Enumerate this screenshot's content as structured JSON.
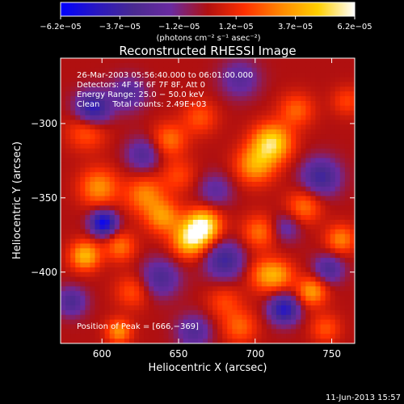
{
  "chart_data": {
    "type": "heatmap",
    "title": "Reconstructed RHESSI Image",
    "xlabel": "Heliocentric X (arcsec)",
    "ylabel": "Heliocentric Y (arcsec)",
    "xlim": [
      573,
      765
    ],
    "ylim": [
      -448,
      -256
    ],
    "x_ticks": [
      600,
      650,
      700,
      750
    ],
    "y_ticks": [
      -300,
      -350,
      -400
    ],
    "x_tick_labels": [
      "600",
      "650",
      "700",
      "750"
    ],
    "y_tick_labels": [
      "−300",
      "−350",
      "−400"
    ],
    "colorbar": {
      "range": [
        -6.2e-05,
        6.2e-05
      ],
      "ticks": [
        -6.2e-05,
        -3.7e-05,
        -1.2e-05,
        1.2e-05,
        3.7e-05,
        6.2e-05
      ],
      "tick_labels": [
        "−6.2e−05",
        "−3.7e−05",
        "−1.2e−05",
        "1.2e−05",
        "3.7e−05",
        "6.2e−05"
      ],
      "unit_label": "(photons cm⁻² s⁻¹ asec⁻²)",
      "colors": [
        "#0000ff",
        "#2a18c0",
        "#4a2a90",
        "#6a2aa0",
        "#b01010",
        "#ff3000",
        "#ff8800",
        "#ffd000",
        "#ffffff"
      ]
    },
    "annotations": {
      "time_range": "26‑Mar‑2003 05:56:40.000 to 06:01:00.000",
      "detectors": "Detectors: 4F 5F 6F 7F 8F, Att 0",
      "energy": "Energy Range: 25.0 − 50.0 keV",
      "clean": "Clean     Total counts: 2.49E+03",
      "peak": "Position of Peak = [666,−369]"
    },
    "peak_position": [
      666,
      -369
    ],
    "sources": [
      {
        "x": 666,
        "y": -369,
        "amp": 1.0,
        "w": 8
      },
      {
        "x": 657,
        "y": -379,
        "amp": 0.75,
        "w": 8
      },
      {
        "x": 711,
        "y": -313,
        "amp": 0.85,
        "w": 9
      },
      {
        "x": 700,
        "y": -328,
        "amp": 0.6,
        "w": 9
      },
      {
        "x": 590,
        "y": -305,
        "amp": 0.4,
        "w": 9
      },
      {
        "x": 598,
        "y": -343,
        "amp": 0.55,
        "w": 9
      },
      {
        "x": 628,
        "y": -348,
        "amp": 0.5,
        "w": 9
      },
      {
        "x": 640,
        "y": -363,
        "amp": 0.55,
        "w": 8
      },
      {
        "x": 589,
        "y": -389,
        "amp": 0.7,
        "w": 7
      },
      {
        "x": 612,
        "y": -383,
        "amp": 0.45,
        "w": 7
      },
      {
        "x": 644,
        "y": -311,
        "amp": 0.45,
        "w": 8
      },
      {
        "x": 664,
        "y": -296,
        "amp": 0.35,
        "w": 8
      },
      {
        "x": 727,
        "y": -291,
        "amp": 0.4,
        "w": 8
      },
      {
        "x": 732,
        "y": -356,
        "amp": 0.45,
        "w": 8
      },
      {
        "x": 756,
        "y": -378,
        "amp": 0.5,
        "w": 7
      },
      {
        "x": 703,
        "y": -373,
        "amp": 0.45,
        "w": 8
      },
      {
        "x": 707,
        "y": -402,
        "amp": 0.5,
        "w": 8
      },
      {
        "x": 717,
        "y": -402,
        "amp": 0.35,
        "w": 7
      },
      {
        "x": 737,
        "y": -413,
        "amp": 0.6,
        "w": 7
      },
      {
        "x": 611,
        "y": -440,
        "amp": 0.55,
        "w": 6
      },
      {
        "x": 620,
        "y": -413,
        "amp": 0.35,
        "w": 8
      },
      {
        "x": 690,
        "y": -437,
        "amp": 0.4,
        "w": 8
      },
      {
        "x": 680,
        "y": -420,
        "amp": 0.3,
        "w": 8
      },
      {
        "x": 746,
        "y": -438,
        "amp": 0.35,
        "w": 7
      },
      {
        "x": 650,
        "y": -335,
        "amp": 0.3,
        "w": 8
      },
      {
        "x": 760,
        "y": -285,
        "amp": 0.3,
        "w": 7
      },
      {
        "x": 601,
        "y": -367,
        "amp": -1.0,
        "w": 6
      },
      {
        "x": 594,
        "y": -290,
        "amp": -0.8,
        "w": 8
      },
      {
        "x": 719,
        "y": -425,
        "amp": -0.8,
        "w": 7
      },
      {
        "x": 638,
        "y": -404,
        "amp": -0.5,
        "w": 9
      },
      {
        "x": 680,
        "y": -392,
        "amp": -0.6,
        "w": 9
      },
      {
        "x": 743,
        "y": -336,
        "amp": -0.6,
        "w": 9
      },
      {
        "x": 748,
        "y": -398,
        "amp": -0.5,
        "w": 7
      },
      {
        "x": 627,
        "y": -321,
        "amp": -0.45,
        "w": 8
      },
      {
        "x": 617,
        "y": -280,
        "amp": -0.45,
        "w": 8
      },
      {
        "x": 690,
        "y": -270,
        "amp": -0.4,
        "w": 9
      },
      {
        "x": 674,
        "y": -345,
        "amp": -0.35,
        "w": 8
      },
      {
        "x": 580,
        "y": -420,
        "amp": -0.5,
        "w": 7
      },
      {
        "x": 660,
        "y": -440,
        "amp": -0.45,
        "w": 8
      },
      {
        "x": 720,
        "y": -370,
        "amp": -0.35,
        "w": 7
      }
    ]
  },
  "footer": {
    "date_stamp": "11‑Jun‑2013 15:57"
  }
}
